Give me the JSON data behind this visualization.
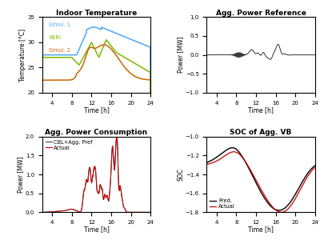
{
  "title_tl": "Indoor Temperature",
  "title_tr": "Agg. Power Reference",
  "title_bl": "Agg. Power Consumption",
  "title_br": "SOC of Agg. VB",
  "xlabel": "Time [h]",
  "ylabel_tl": "Temperature [°C]",
  "ylabel_tr": "Power [MW]",
  "ylabel_bl": "Power [MW]",
  "ylabel_br": "SOC",
  "xlim": [
    2,
    24
  ],
  "xticks": [
    4,
    8,
    12,
    16,
    20,
    24
  ],
  "ylim_tl": [
    20,
    35
  ],
  "yticks_tl": [
    20,
    25,
    30,
    35
  ],
  "ylim_tr": [
    -1,
    1
  ],
  "yticks_tr": [
    -1,
    -0.5,
    0,
    0.5,
    1
  ],
  "ylim_bl": [
    0,
    2.0
  ],
  "yticks_bl": [
    0,
    0.5,
    1.0,
    1.5,
    2.0
  ],
  "ylim_br": [
    -1.8,
    -1.0
  ],
  "yticks_br": [
    -1.8,
    -1.6,
    -1.4,
    -1.2,
    -1.0
  ],
  "legend_tl": [
    "Simul. 1",
    "KERI",
    "Simul. 2"
  ],
  "legend_bl": [
    "CBL+Agg. Pref",
    "Actual"
  ],
  "legend_br": [
    "Pred.",
    "Actual"
  ],
  "color_simul1": "#4da6ff",
  "color_keri": "#7db800",
  "color_simul2": "#cc6600",
  "color_ref": "#111111",
  "color_cbl": "#444444",
  "color_actual_bl": "#cc0000",
  "color_actual_br": "#cc0000",
  "color_pred": "#111111",
  "background": "#ffffff"
}
